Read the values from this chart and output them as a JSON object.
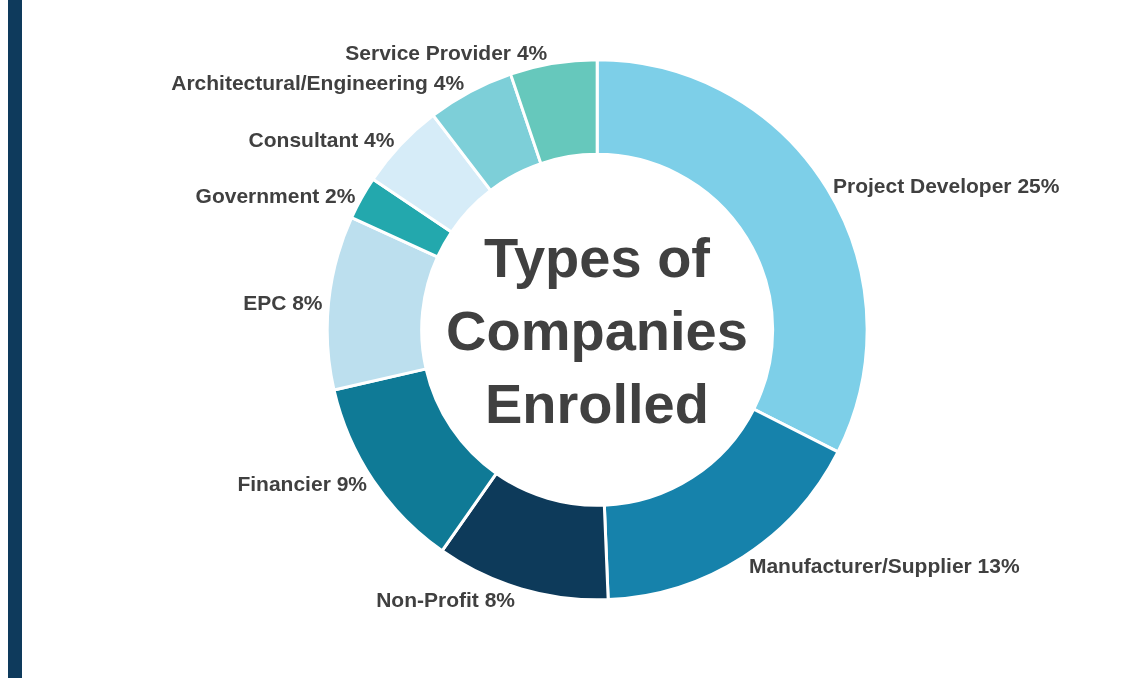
{
  "chart_data": {
    "type": "donut",
    "title": "Types of Companies Enrolled",
    "categories": [
      "Project Developer",
      "Manufacturer/Supplier",
      "Non-Profit",
      "Financier",
      "EPC",
      "Government",
      "Consultant",
      "Architectural/Engineering",
      "Service Provider"
    ],
    "values": [
      25,
      13,
      8,
      9,
      8,
      2,
      4,
      4,
      4
    ],
    "value_labels": [
      "25%",
      "13%",
      "8%",
      "9%",
      "8%",
      "2%",
      "4%",
      "4%",
      "4%"
    ],
    "colors": [
      "#7dcfe8",
      "#1682ab",
      "#0d3a5a",
      "#0f7a96",
      "#bcdfee",
      "#23a8ad",
      "#d6ecf8",
      "#7dcfd8",
      "#66c8bc"
    ],
    "legend": false
  }
}
